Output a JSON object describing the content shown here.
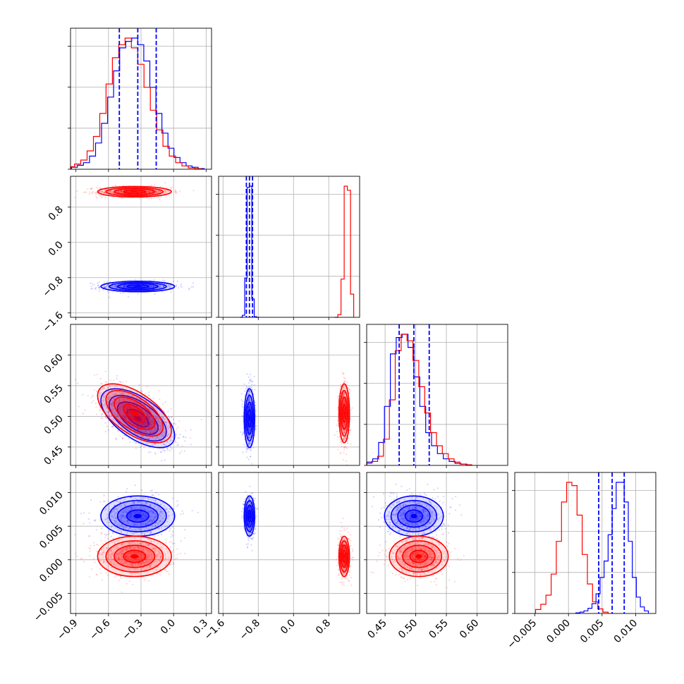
{
  "chart_data": {
    "type": "corner",
    "title": "",
    "params": [
      {
        "name": "",
        "xlim": [
          -0.95,
          0.35
        ],
        "ticks": [
          -0.9,
          -0.6,
          -0.3,
          0.0,
          0.3
        ],
        "tick_labels": [
          "−0.9",
          "−0.6",
          "−0.3",
          "0.0",
          "0.3"
        ]
      },
      {
        "name": "",
        "xlim": [
          -1.7,
          1.5
        ],
        "ticks": [
          -1.6,
          -0.8,
          0.0,
          0.8
        ],
        "tick_labels": [
          "−1.6",
          "−0.8",
          "0.0",
          "0.8"
        ]
      },
      {
        "name": "",
        "xlim": [
          0.42,
          0.65
        ],
        "ticks": [
          0.45,
          0.5,
          0.55,
          0.6
        ],
        "tick_labels": [
          "0.45",
          "0.50",
          "0.55",
          "0.60"
        ]
      },
      {
        "name": "",
        "xlim": [
          -0.008,
          0.013
        ],
        "ticks": [
          -0.005,
          0.0,
          0.005,
          0.01
        ],
        "tick_labels": [
          "−0.005",
          "0.000",
          "0.005",
          "0.010"
        ]
      }
    ],
    "series": [
      {
        "color": "#0000ff",
        "means": [
          -0.33,
          -1.0,
          0.497,
          0.0065
        ],
        "sds": [
          0.17,
          0.06,
          0.024,
          0.0015
        ],
        "quantiles": [
          [
            -0.5,
            -0.33,
            -0.16
          ],
          [
            -1.07,
            -1.0,
            -0.93
          ],
          [
            0.473,
            0.497,
            0.522
          ],
          [
            0.0045,
            0.0065,
            0.0083
          ]
        ]
      },
      {
        "color": "#ff0000",
        "means": [
          -0.36,
          1.15,
          0.505,
          0.0005
        ],
        "sds": [
          0.17,
          0.06,
          0.024,
          0.0015
        ],
        "quantiles": []
      }
    ],
    "correlations": [
      [
        0,
        2,
        -0.6
      ]
    ],
    "histogram_counts": {
      "blue": [
        [
          3,
          6,
          10,
          20,
          40,
          70,
          110,
          150,
          185,
          195,
          200,
          190,
          165,
          125,
          85,
          55,
          32,
          18,
          10,
          5,
          3,
          1
        ],
        [
          0,
          15,
          300,
          990,
          1000,
          140,
          5,
          0
        ],
        [
          2,
          5,
          10,
          35,
          90,
          170,
          195,
          200,
          180,
          135,
          90,
          50,
          30,
          18,
          10,
          6,
          3,
          2
        ],
        [
          1,
          2,
          4,
          8,
          15,
          30,
          55,
          80,
          120,
          160,
          200,
          200,
          170,
          110,
          55,
          25,
          10,
          4
        ]
      ],
      "red": [
        [
          4,
          8,
          14,
          28,
          50,
          85,
          130,
          170,
          190,
          200,
          185,
          160,
          125,
          90,
          60,
          35,
          20,
          10,
          5,
          2,
          1
        ],
        [
          0,
          20,
          280,
          960,
          930,
          170
        ],
        [
          3,
          6,
          14,
          40,
          100,
          175,
          200,
          190,
          160,
          120,
          80,
          50,
          30,
          18,
          10,
          5,
          2,
          1
        ],
        [
          6,
          14,
          28,
          60,
          110,
          170,
          200,
          195,
          150,
          90,
          45,
          18,
          7,
          2
        ]
      ]
    },
    "grid": true,
    "legend": "none"
  }
}
